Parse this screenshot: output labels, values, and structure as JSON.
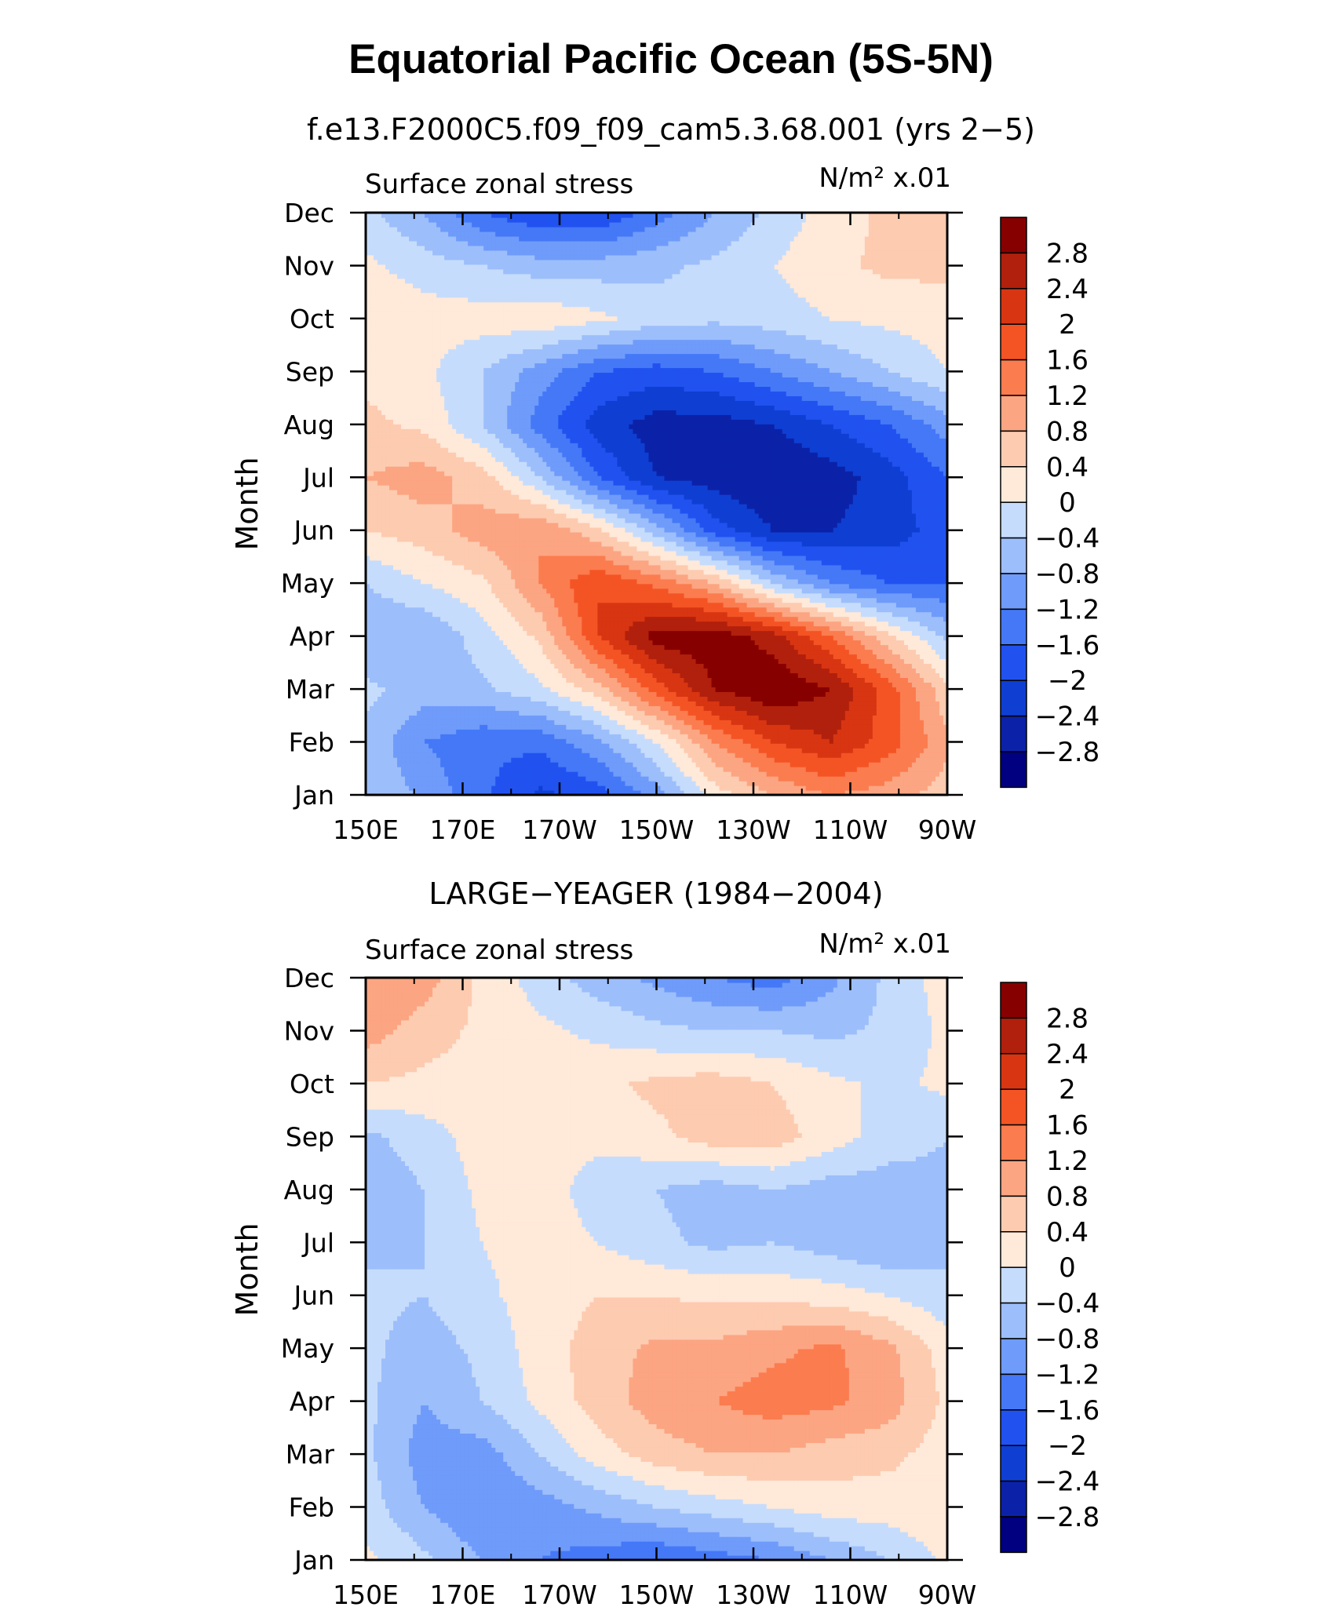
{
  "figure": {
    "title": "Equatorial Pacific Ocean (5S-5N)"
  },
  "colors": {
    "palette": [
      "#000080",
      "#0b22a8",
      "#0f3fd2",
      "#2152f0",
      "#4478f7",
      "#6f9bfa",
      "#9cbefb",
      "#c6dcfc",
      "#ffe9d9",
      "#fdcbb0",
      "#fca582",
      "#fb7c4f",
      "#f45424",
      "#d83512",
      "#b1200c",
      "#870000"
    ]
  },
  "chart_data": [
    {
      "type": "heatmap",
      "subtitle": "f.e13.F2000C5.f09_f09_cam5.3.68.001 (yrs 2−5)",
      "left_label": "Surface zonal stress",
      "units": "N/m² x.01",
      "xlabel": "",
      "ylabel": "Month",
      "x": [
        "150E",
        "170E",
        "170W",
        "150W",
        "130W",
        "110W",
        "90W"
      ],
      "y": [
        "Jan",
        "Feb",
        "Mar",
        "Apr",
        "May",
        "Jun",
        "Jul",
        "Aug",
        "Sep",
        "Oct",
        "Nov",
        "Dec"
      ],
      "colorbar_labels": [
        "2.8",
        "2.4",
        "2",
        "1.6",
        "1.2",
        "0.8",
        "0.4",
        "0",
        "−0.4",
        "−0.8",
        "−1.2",
        "−1.6",
        "−2",
        "−2.4",
        "−2.8"
      ],
      "values": [
        [
          -0.4,
          -0.9,
          -1.5,
          -2.1,
          -1.8,
          -1.0,
          0.2,
          0.8,
          1.2,
          1.0,
          0.6
        ],
        [
          -0.5,
          -1.2,
          -1.5,
          -1.5,
          -0.9,
          0.0,
          1.2,
          2.0,
          2.4,
          1.8,
          0.9
        ],
        [
          -0.3,
          -0.6,
          -0.5,
          -0.1,
          0.6,
          1.8,
          2.8,
          3.2,
          2.8,
          1.8,
          0.5
        ],
        [
          -0.8,
          -0.8,
          -0.2,
          0.5,
          2.0,
          3.0,
          3.1,
          2.6,
          1.6,
          0.5,
          -0.5
        ],
        [
          -0.4,
          0.0,
          0.3,
          1.2,
          2.0,
          1.5,
          0.8,
          -0.4,
          -1.2,
          -1.6,
          -1.6
        ],
        [
          0.4,
          0.6,
          1.0,
          1.2,
          0.5,
          -0.6,
          -1.8,
          -2.4,
          -2.4,
          -2.2,
          -1.8
        ],
        [
          0.8,
          1.0,
          0.6,
          -0.4,
          -1.6,
          -2.4,
          -2.6,
          -2.8,
          -2.6,
          -2.2,
          -1.6
        ],
        [
          0.5,
          0.3,
          -0.4,
          -1.4,
          -2.2,
          -2.6,
          -2.6,
          -2.4,
          -2.0,
          -1.6,
          -1.0
        ],
        [
          0.3,
          0.1,
          -0.4,
          -1.0,
          -1.6,
          -1.8,
          -1.6,
          -1.2,
          -0.8,
          -0.4,
          0.0
        ],
        [
          0.3,
          0.2,
          0.2,
          0.3,
          0.1,
          -0.2,
          -0.3,
          -0.2,
          0.0,
          0.1,
          0.2
        ],
        [
          0.1,
          -0.2,
          -0.4,
          -0.6,
          -0.6,
          -0.5,
          -0.3,
          0.0,
          0.3,
          0.5,
          0.5
        ],
        [
          -0.3,
          -0.8,
          -1.6,
          -2.0,
          -2.0,
          -1.4,
          -0.8,
          -0.3,
          0.2,
          0.5,
          0.6
        ]
      ]
    },
    {
      "type": "heatmap",
      "subtitle": "LARGE−YEAGER (1984−2004)",
      "left_label": "Surface zonal stress",
      "units": "N/m² x.01",
      "xlabel": "",
      "ylabel": "Month",
      "x": [
        "150E",
        "170E",
        "170W",
        "150W",
        "130W",
        "110W",
        "90W"
      ],
      "y": [
        "Jan",
        "Feb",
        "Mar",
        "Apr",
        "May",
        "Jun",
        "Jul",
        "Aug",
        "Sep",
        "Oct",
        "Nov",
        "Dec"
      ],
      "colorbar_labels": [
        "2.8",
        "2.4",
        "2",
        "1.6",
        "1.2",
        "0.8",
        "0.4",
        "0",
        "−0.4",
        "−0.8",
        "−1.2",
        "−1.6",
        "−2",
        "−2.4",
        "−2.8"
      ],
      "values": [
        [
          0.1,
          -0.3,
          -0.8,
          -1.2,
          -1.4,
          -1.6,
          -1.4,
          -1.2,
          -0.8,
          -0.4,
          0.1
        ],
        [
          -0.2,
          -0.8,
          -1.2,
          -1.0,
          -0.7,
          -0.4,
          -0.2,
          0.0,
          0.2,
          0.2,
          0.3
        ],
        [
          -0.3,
          -1.0,
          -1.0,
          -0.4,
          0.2,
          0.6,
          0.8,
          0.8,
          0.6,
          0.5,
          0.2
        ],
        [
          -0.3,
          -0.8,
          -0.4,
          0.1,
          0.6,
          1.0,
          1.2,
          1.4,
          1.3,
          1.0,
          0.3
        ],
        [
          -0.3,
          -0.6,
          -0.3,
          0.2,
          0.6,
          0.9,
          0.9,
          1.1,
          1.3,
          0.9,
          0.2
        ],
        [
          -0.3,
          -0.4,
          -0.1,
          0.2,
          0.4,
          0.4,
          0.3,
          0.3,
          0.2,
          0.0,
          -0.3
        ],
        [
          -0.5,
          -0.4,
          0.0,
          0.2,
          0.0,
          -0.3,
          -0.5,
          -0.4,
          -0.6,
          -0.8,
          -0.5
        ],
        [
          -0.7,
          -0.4,
          0.1,
          0.2,
          -0.2,
          -0.4,
          -0.6,
          -0.4,
          -0.6,
          -0.6,
          -0.5
        ],
        [
          -0.5,
          -0.2,
          0.2,
          0.2,
          0.1,
          0.3,
          0.6,
          0.6,
          0.2,
          -0.2,
          -0.4
        ],
        [
          0.4,
          0.3,
          0.2,
          0.2,
          0.3,
          0.5,
          0.6,
          0.4,
          0.1,
          -0.1,
          0.1
        ],
        [
          1.0,
          0.6,
          0.3,
          0.1,
          -0.1,
          -0.3,
          -0.4,
          -0.4,
          -0.5,
          -0.3,
          0.1
        ],
        [
          1.2,
          1.0,
          0.3,
          -0.2,
          -0.6,
          -0.9,
          -1.2,
          -1.4,
          -0.9,
          -0.3,
          0.2
        ]
      ]
    }
  ]
}
